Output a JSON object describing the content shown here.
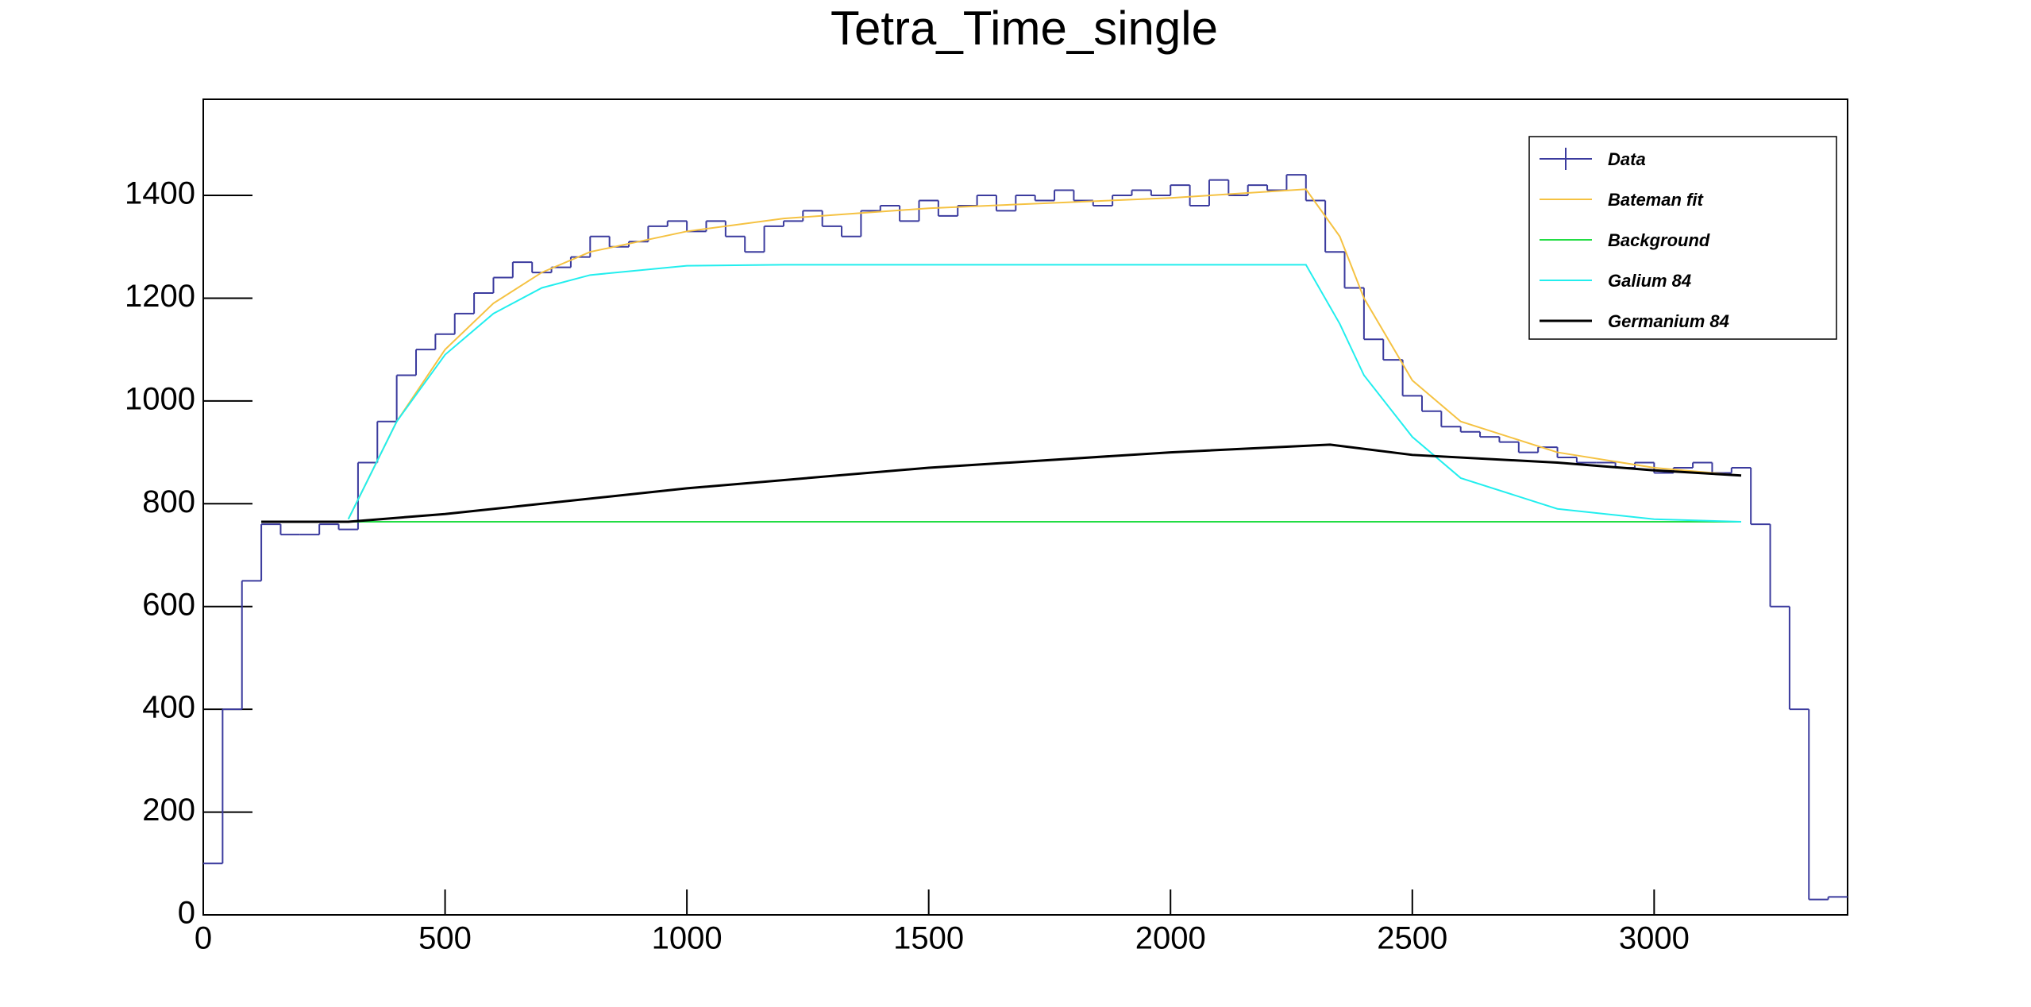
{
  "chart_data": {
    "type": "histogram",
    "title": "Tetra_Time_single",
    "xlim": [
      0,
      3400
    ],
    "ylim": [
      0,
      1587
    ],
    "xticks": [
      0,
      500,
      1000,
      1500,
      2000,
      2500,
      3000
    ],
    "yticks": [
      0,
      200,
      400,
      600,
      800,
      1000,
      1200,
      1400
    ],
    "legend": "upper right",
    "hist": {
      "name": "Data",
      "color": "#3b3b9e",
      "bins": [
        0,
        40,
        80,
        120,
        160,
        200,
        240,
        280,
        320,
        360,
        400,
        440,
        480,
        520,
        560,
        600,
        640,
        680,
        720,
        760,
        800,
        840,
        880,
        920,
        960,
        1000,
        1040,
        1080,
        1120,
        1160,
        1200,
        1240,
        1280,
        1320,
        1360,
        1400,
        1440,
        1480,
        1520,
        1560,
        1600,
        1640,
        1680,
        1720,
        1760,
        1800,
        1840,
        1880,
        1920,
        1960,
        2000,
        2040,
        2080,
        2120,
        2160,
        2200,
        2240,
        2280,
        2320,
        2360,
        2400,
        2440,
        2480,
        2520,
        2560,
        2600,
        2640,
        2680,
        2720,
        2760,
        2800,
        2840,
        2880,
        2920,
        2960,
        3000,
        3040,
        3080,
        3120,
        3160,
        3200,
        3240,
        3280,
        3320,
        3360,
        3400
      ],
      "values": [
        100,
        400,
        650,
        760,
        740,
        740,
        760,
        750,
        880,
        960,
        1050,
        1100,
        1130,
        1170,
        1210,
        1240,
        1270,
        1250,
        1260,
        1280,
        1320,
        1300,
        1310,
        1340,
        1350,
        1330,
        1350,
        1320,
        1290,
        1340,
        1350,
        1370,
        1340,
        1320,
        1370,
        1380,
        1350,
        1390,
        1360,
        1380,
        1400,
        1370,
        1400,
        1390,
        1410,
        1390,
        1380,
        1400,
        1410,
        1400,
        1420,
        1380,
        1430,
        1400,
        1420,
        1410,
        1440,
        1390,
        1290,
        1220,
        1120,
        1080,
        1010,
        980,
        950,
        940,
        930,
        920,
        900,
        910,
        890,
        880,
        880,
        870,
        880,
        860,
        870,
        880,
        860,
        870,
        760,
        600,
        400,
        30,
        35
      ]
    },
    "series": [
      {
        "name": "Bateman fit",
        "color": "#f5c242",
        "x": [
          300,
          400,
          500,
          600,
          700,
          800,
          1000,
          1200,
          1500,
          2000,
          2280,
          2350,
          2400,
          2500,
          2600,
          2800,
          3000,
          3180
        ],
        "values": [
          770,
          960,
          1100,
          1190,
          1250,
          1290,
          1330,
          1355,
          1375,
          1395,
          1412,
          1320,
          1200,
          1040,
          960,
          900,
          870,
          855
        ]
      },
      {
        "name": "Background",
        "color": "#22dd44",
        "x": [
          120,
          3180
        ],
        "values": [
          765,
          765
        ]
      },
      {
        "name": "Galium 84",
        "color": "#22eeee",
        "x": [
          300,
          400,
          500,
          600,
          700,
          800,
          1000,
          1200,
          2280,
          2350,
          2400,
          2500,
          2600,
          2800,
          3000,
          3180
        ],
        "values": [
          770,
          960,
          1090,
          1170,
          1220,
          1245,
          1263,
          1265,
          1265,
          1150,
          1050,
          930,
          850,
          790,
          770,
          765
        ]
      },
      {
        "name": "Germanium 84",
        "color": "#000000",
        "x": [
          120,
          300,
          500,
          1000,
          1500,
          2000,
          2330,
          2500,
          2800,
          3000,
          3180
        ],
        "values": [
          765,
          765,
          780,
          830,
          870,
          900,
          915,
          895,
          880,
          865,
          855
        ]
      }
    ]
  }
}
